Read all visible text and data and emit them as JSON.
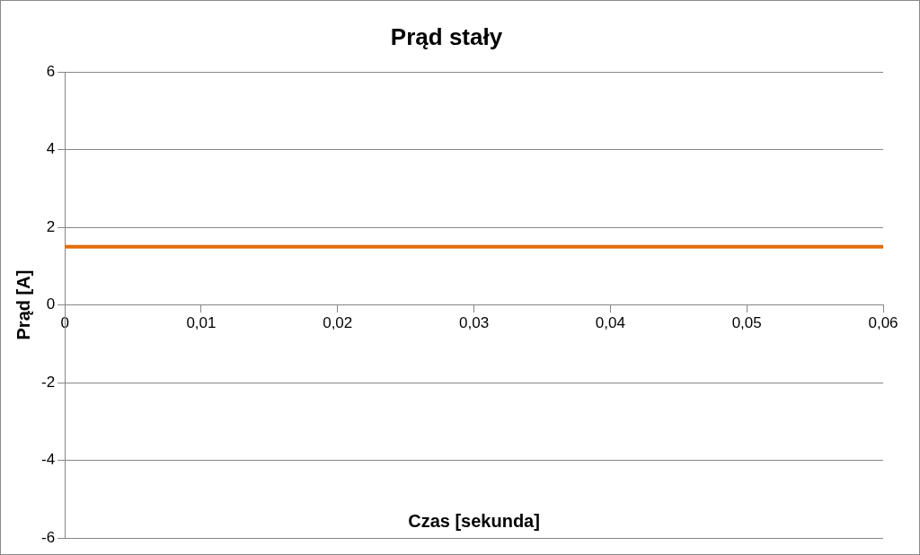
{
  "chart_data": {
    "type": "line",
    "title": "Prąd stały",
    "xlabel": "Czas [sekunda]",
    "ylabel": "Prąd [A]",
    "x": [
      0,
      0.06
    ],
    "series": [
      {
        "color": "#e36c0a",
        "values": [
          1.5,
          1.5
        ]
      }
    ],
    "xlim": [
      0,
      0.06
    ],
    "xticks": [
      0,
      {
        "value": 0.01,
        "label": "0,01"
      },
      {
        "value": 0.02,
        "label": "0,02"
      },
      {
        "value": 0.03,
        "label": "0,03"
      },
      {
        "value": 0.04,
        "label": "0,04"
      },
      {
        "value": 0.05,
        "label": "0,05"
      },
      {
        "value": 0.06,
        "label": "0,06"
      }
    ],
    "ylim": [
      -6,
      6
    ],
    "yticks": [
      -6,
      -4,
      -2,
      0,
      2,
      4,
      6
    ],
    "grid": "y",
    "legend": false,
    "marker": "none",
    "line_style": "solid"
  }
}
